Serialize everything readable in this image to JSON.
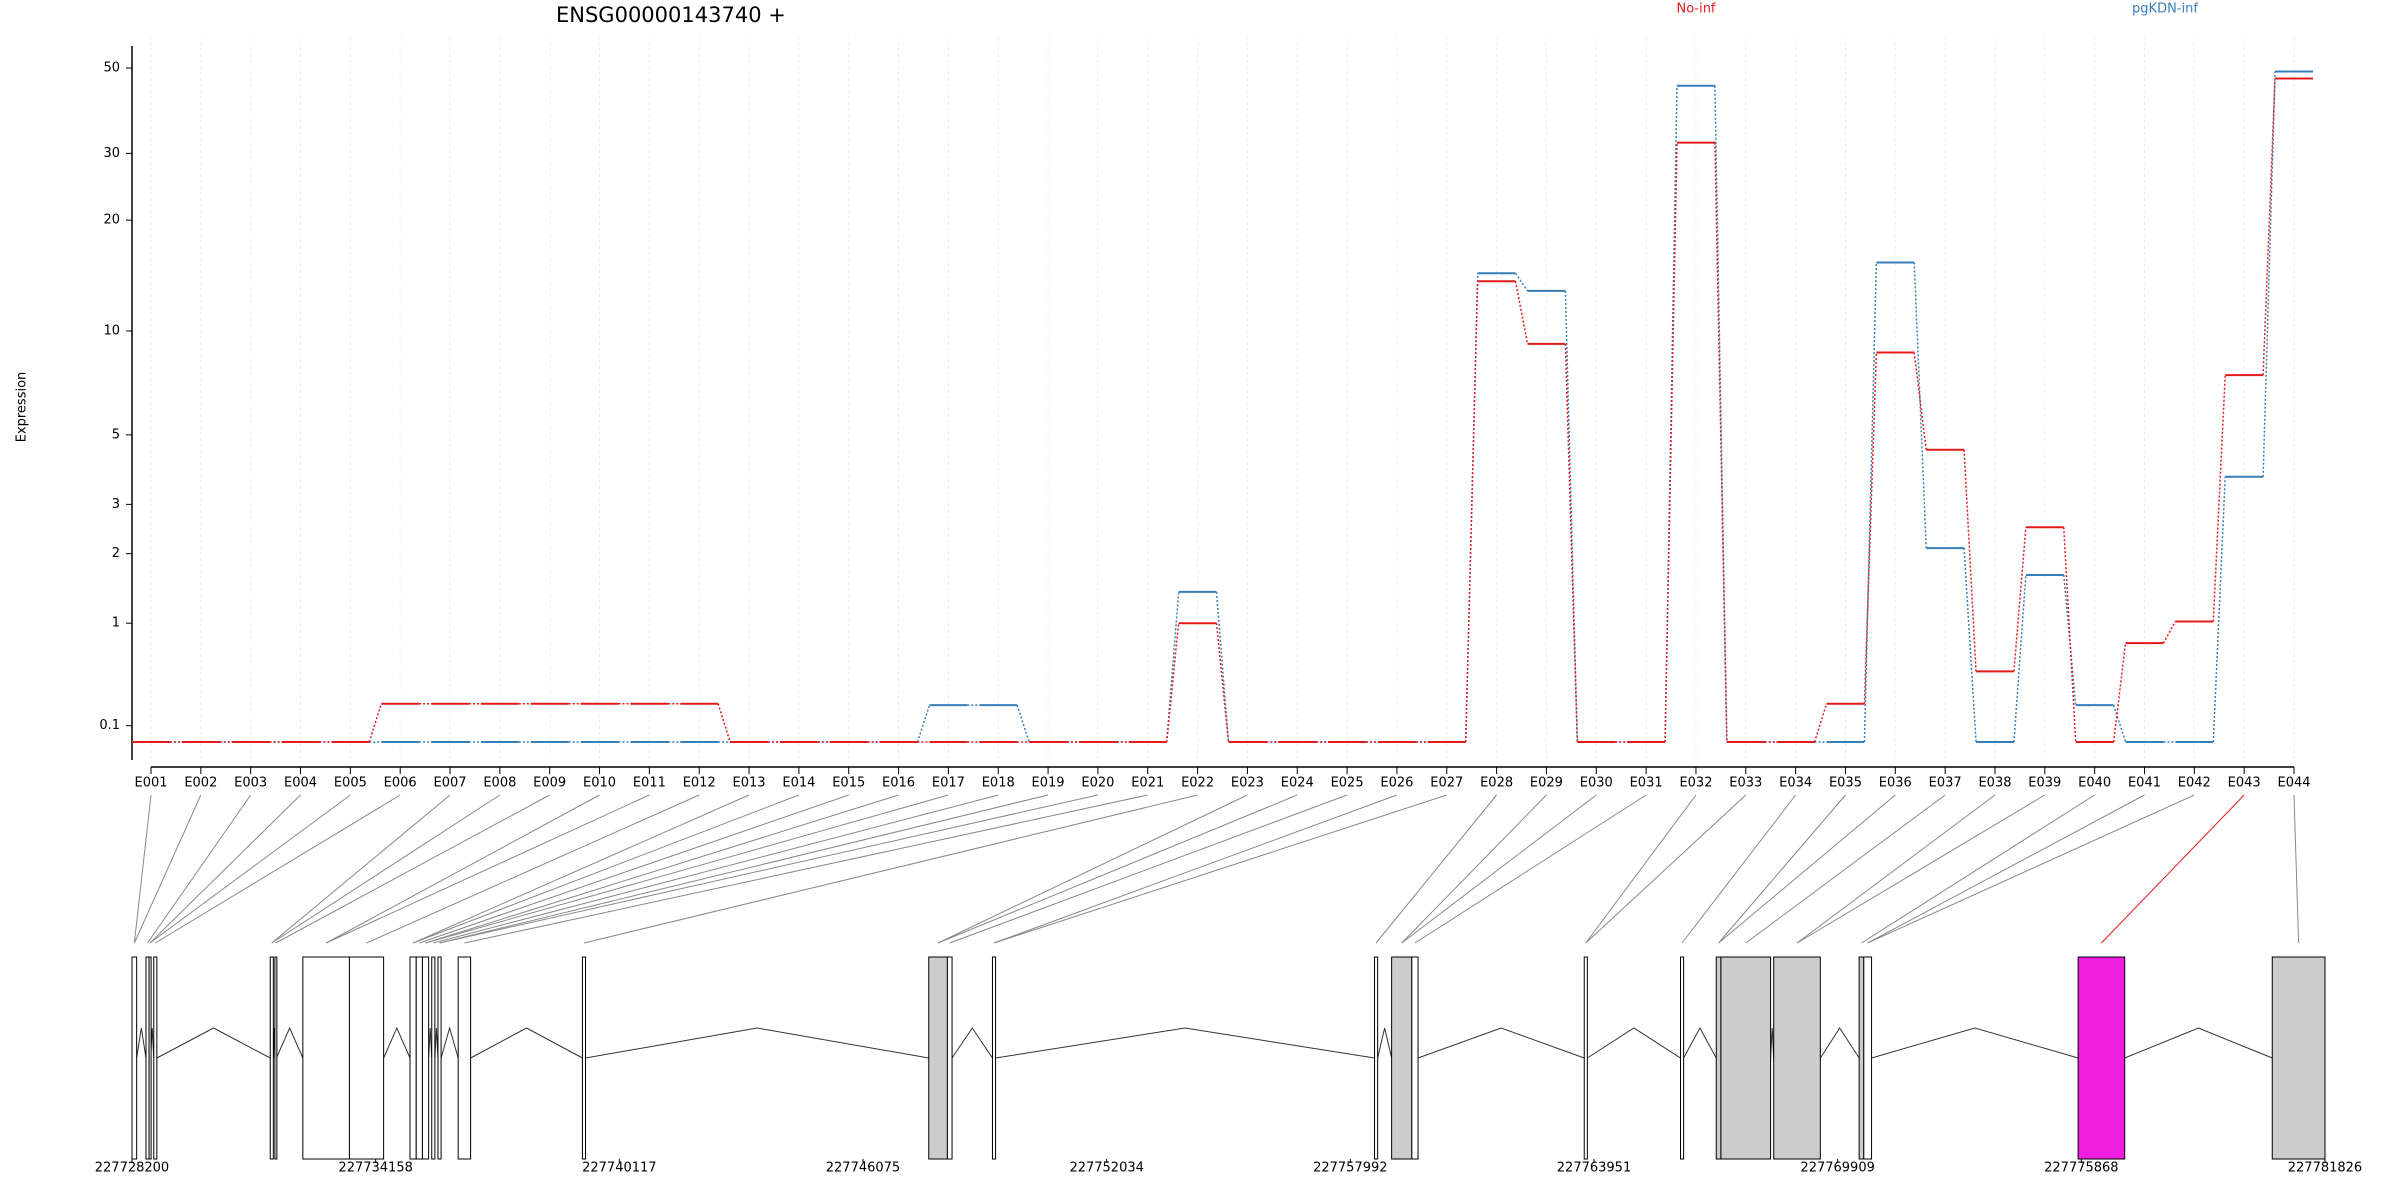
{
  "chart_data": {
    "type": "step",
    "title": "ENSG00000143740 +",
    "y_label": "Expression",
    "scale": "log1p",
    "grid": true,
    "categories": [
      "E001",
      "E002",
      "E003",
      "E004",
      "E005",
      "E006",
      "E007",
      "E008",
      "E009",
      "E010",
      "E011",
      "E012",
      "E013",
      "E014",
      "E015",
      "E016",
      "E017",
      "E018",
      "E019",
      "E020",
      "E021",
      "E022",
      "E023",
      "E024",
      "E025",
      "E026",
      "E027",
      "E028",
      "E029",
      "E030",
      "E031",
      "E032",
      "E033",
      "E034",
      "E035",
      "E036",
      "E037",
      "E038",
      "E039",
      "E040",
      "E041",
      "E042",
      "E043",
      "E044"
    ],
    "series": [
      {
        "name": "pgKDN-inf",
        "color": "#377eb8",
        "values": [
          0,
          0,
          0,
          0,
          0,
          0,
          0,
          0,
          0,
          0,
          0,
          0,
          0,
          0,
          0,
          0,
          0.24,
          0.24,
          0,
          0,
          0,
          1.4,
          0,
          0,
          0,
          0,
          0,
          14.4,
          12.9,
          0,
          0,
          45,
          0,
          0,
          0,
          15.4,
          2.1,
          0,
          1.65,
          0.24,
          0,
          0,
          3.7,
          49
        ]
      },
      {
        "name": "No-inf",
        "color": "#e41a1c",
        "values": [
          0,
          0,
          0,
          0,
          0,
          0.25,
          0.25,
          0.25,
          0.25,
          0.25,
          0.25,
          0.25,
          0,
          0,
          0,
          0,
          0,
          0,
          0,
          0,
          0,
          1,
          0,
          0,
          0,
          0,
          0,
          13.7,
          9.2,
          0,
          0,
          32,
          0,
          0,
          0.25,
          8.7,
          4.5,
          0.51,
          2.5,
          0,
          0.78,
          1.02,
          7.5,
          47
        ]
      }
    ],
    "ylim": [
      0,
      57
    ],
    "yticks": [
      0.1,
      1,
      2,
      3,
      5,
      10,
      20,
      30,
      50
    ],
    "gene_model": {
      "xlim": [
        227728200,
        227781826
      ],
      "xticks": [
        227728200,
        227734158,
        227740117,
        227746075,
        227752034,
        227757992,
        227763951,
        227769909,
        227775868,
        227781826
      ],
      "exons": [
        {
          "start": 227728200,
          "end": 227728314,
          "fill": "#ffffff"
        },
        {
          "start": 227728542,
          "end": 227728618,
          "fill": "#ffffff"
        },
        {
          "start": 227728618,
          "end": 227728656,
          "fill": "#ffffff"
        },
        {
          "start": 227728732,
          "end": 227728808,
          "fill": "#ffffff"
        },
        {
          "start": 227731580,
          "end": 227731656,
          "fill": "#ffffff"
        },
        {
          "start": 227731694,
          "end": 227731732,
          "fill": "#ffffff"
        },
        {
          "start": 227732378,
          "end": 227733517,
          "fill": "#ffffff"
        },
        {
          "start": 227733517,
          "end": 227734353,
          "fill": "#ffffff"
        },
        {
          "start": 227734998,
          "end": 227735150,
          "fill": "#ffffff"
        },
        {
          "start": 227735150,
          "end": 227735302,
          "fill": "#ffffff"
        },
        {
          "start": 227735302,
          "end": 227735454,
          "fill": "#ffffff"
        },
        {
          "start": 227735530,
          "end": 227735606,
          "fill": "#ffffff"
        },
        {
          "start": 227735682,
          "end": 227735758,
          "fill": "#ffffff"
        },
        {
          "start": 227736176,
          "end": 227736480,
          "fill": "#ffffff"
        },
        {
          "start": 227739214,
          "end": 227739290,
          "fill": "#ffffff"
        },
        {
          "start": 227747683,
          "end": 227748139,
          "fill": "#cccccc"
        },
        {
          "start": 227748139,
          "end": 227748253,
          "fill": "#ffffff"
        },
        {
          "start": 227749241,
          "end": 227749317,
          "fill": "#ffffff"
        },
        {
          "start": 227758584,
          "end": 227758660,
          "fill": "#ffffff"
        },
        {
          "start": 227759002,
          "end": 227759496,
          "fill": "#cccccc"
        },
        {
          "start": 227759496,
          "end": 227759648,
          "fill": "#ffffff"
        },
        {
          "start": 227763712,
          "end": 227763788,
          "fill": "#ffffff"
        },
        {
          "start": 227766066,
          "end": 227766142,
          "fill": "#ffffff"
        },
        {
          "start": 227766940,
          "end": 227767054,
          "fill": "#cccccc"
        },
        {
          "start": 227767054,
          "end": 227768269,
          "fill": "#cccccc"
        },
        {
          "start": 227768345,
          "end": 227769485,
          "fill": "#cccccc"
        },
        {
          "start": 227770434,
          "end": 227770548,
          "fill": "#cccccc"
        },
        {
          "start": 227770548,
          "end": 227770738,
          "fill": "#ffffff"
        },
        {
          "start": 227775789,
          "end": 227776928,
          "fill": "#f01ee1"
        },
        {
          "start": 227780536,
          "end": 227781826,
          "fill": "#cccccc"
        }
      ]
    }
  }
}
